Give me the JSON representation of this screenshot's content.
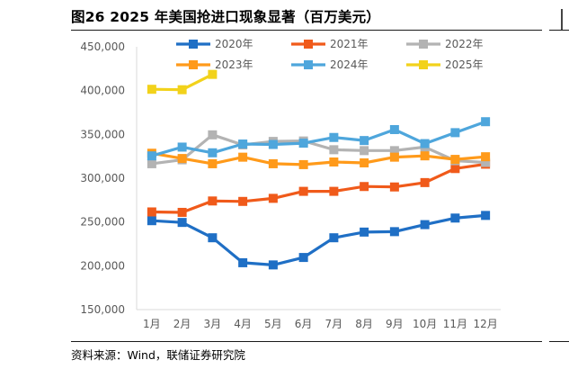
{
  "title": "图26 2025 年美国抢进口现象显著（百万美元）",
  "source": "资料来源：Wind，联储证券研究院",
  "chart_data": {
    "type": "line",
    "categories": [
      "1月",
      "2月",
      "3月",
      "4月",
      "5月",
      "6月",
      "7月",
      "8月",
      "9月",
      "10月",
      "11月",
      "12月"
    ],
    "y_ticks": [
      "150,000",
      "200,000",
      "250,000",
      "300,000",
      "350,000",
      "400,000",
      "450,000"
    ],
    "ylim": [
      150000,
      450000
    ],
    "grid": false,
    "legend_position": "top",
    "series": [
      {
        "name": "2020年",
        "color": "#1f6fc5",
        "values": [
          251500,
          249500,
          232000,
          203500,
          201000,
          209500,
          232000,
          238500,
          239000,
          247000,
          254500,
          257500
        ]
      },
      {
        "name": "2021年",
        "color": "#f05a1a",
        "values": [
          261500,
          261000,
          274000,
          273500,
          277000,
          285000,
          285000,
          290500,
          290000,
          295000,
          311000,
          316000
        ]
      },
      {
        "name": "2022年",
        "color": "#b3b3b3",
        "values": [
          316500,
          321000,
          349500,
          338000,
          342000,
          342500,
          332500,
          331500,
          331500,
          335500,
          320000,
          318000
        ]
      },
      {
        "name": "2023年",
        "color": "#ff9a1a",
        "values": [
          328500,
          322500,
          316500,
          324000,
          316500,
          315500,
          318500,
          317500,
          324000,
          325500,
          321500,
          324500
        ]
      },
      {
        "name": "2024年",
        "color": "#4ea6dc",
        "values": [
          325500,
          335500,
          329000,
          339000,
          338500,
          340000,
          346500,
          343000,
          355500,
          339500,
          352000,
          364500
        ]
      },
      {
        "name": "2025年",
        "color": "#f2d21b",
        "values": [
          401500,
          401000,
          418500,
          null,
          null,
          null,
          null,
          null,
          null,
          null,
          null,
          null
        ]
      }
    ]
  }
}
